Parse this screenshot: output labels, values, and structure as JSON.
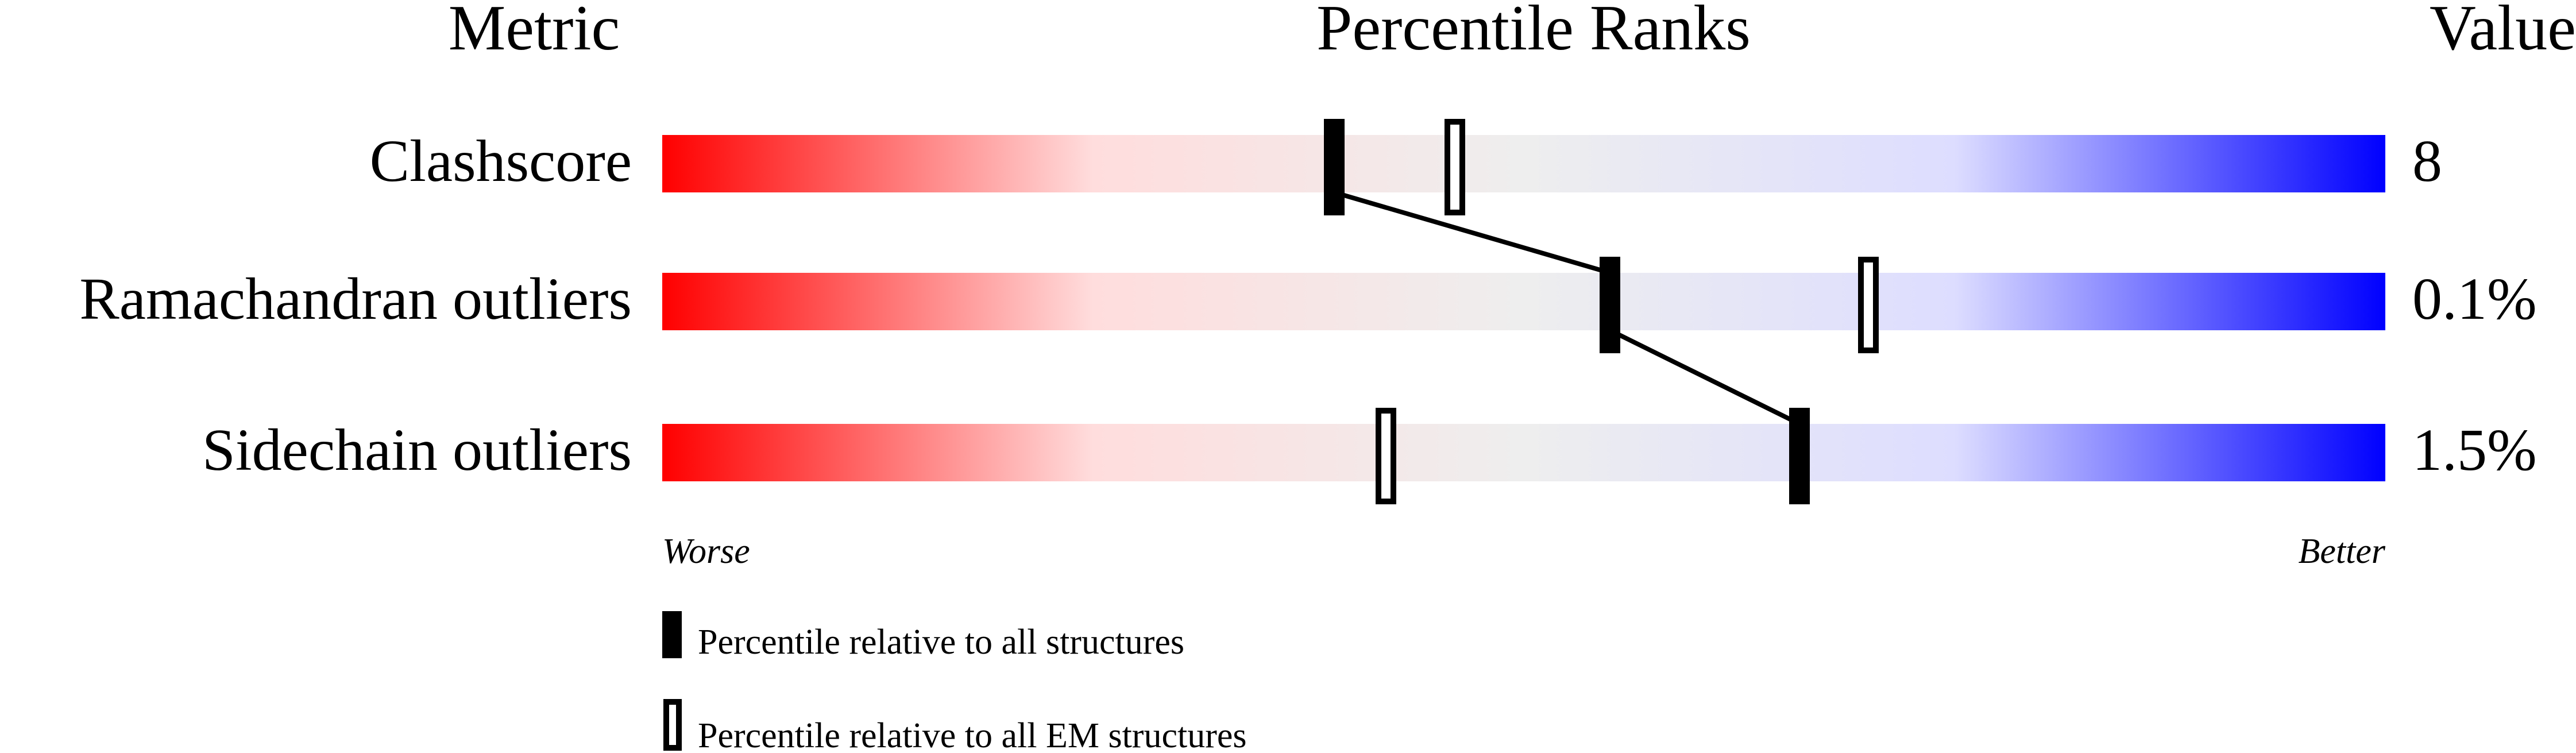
{
  "chart_data": {
    "type": "percentile-ranks",
    "headers": {
      "metric": "Metric",
      "title": "Percentile Ranks",
      "value": "Value"
    },
    "xlim": [
      0,
      100
    ],
    "gradient_colors": [
      "#ff0000",
      "#ffdddd",
      "#eeeeee",
      "#ddddff",
      "#0000ff"
    ],
    "metrics": [
      {
        "name": "Clashscore",
        "value": "8",
        "percentile_all": 39,
        "percentile_em": 46
      },
      {
        "name": "Ramachandran outliers",
        "value": "0.1%",
        "percentile_all": 55,
        "percentile_em": 70
      },
      {
        "name": "Sidechain outliers",
        "value": "1.5%",
        "percentile_all": 66,
        "percentile_em": 42
      }
    ],
    "axis_labels": {
      "left": "Worse",
      "right": "Better"
    },
    "legend": [
      {
        "marker": "filled",
        "label": "Percentile relative to all structures"
      },
      {
        "marker": "open",
        "label": "Percentile relative to all EM structures"
      }
    ]
  }
}
